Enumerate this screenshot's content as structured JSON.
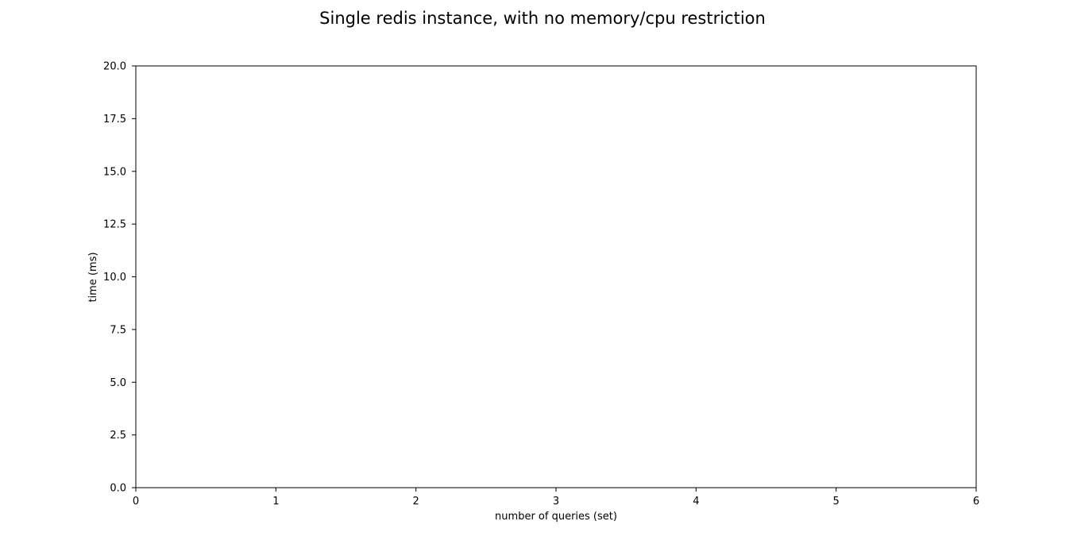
{
  "chart_data": {
    "type": "line",
    "title": "Single redis instance, with no memory/cpu restriction",
    "xlabel": "number of queries (set)",
    "ylabel": "time (ms)",
    "xlim": [
      0,
      6
    ],
    "ylim": [
      0,
      20
    ],
    "xticks": [
      0,
      1,
      2,
      3,
      4,
      5,
      6
    ],
    "xtick_labels": [
      "0",
      "1",
      "2",
      "3",
      "4",
      "5",
      "6"
    ],
    "yticks": [
      0,
      2.5,
      5,
      7.5,
      10,
      12.5,
      15,
      17.5,
      20
    ],
    "ytick_labels": [
      "0.0",
      "2.5",
      "5.0",
      "7.5",
      "10.0",
      "12.5",
      "15.0",
      "17.5",
      "20.0"
    ],
    "grid": false,
    "series": []
  }
}
